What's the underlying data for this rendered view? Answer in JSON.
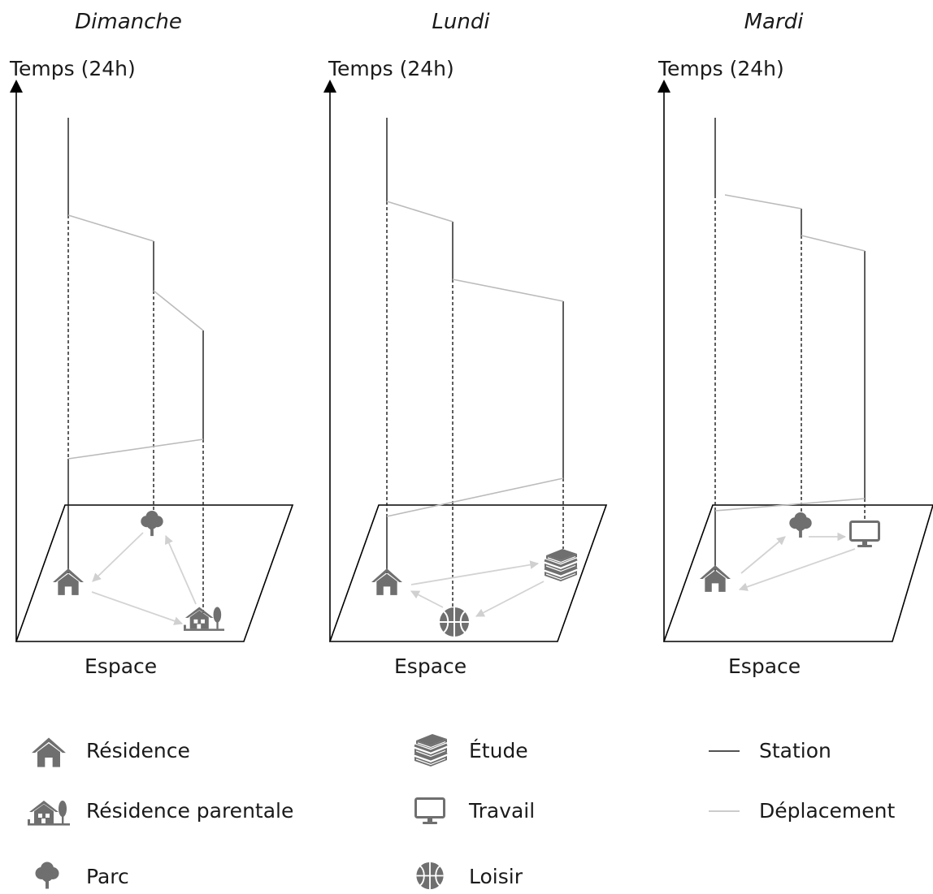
{
  "panels": [
    {
      "day": "Dimanche",
      "y_axis_label": "Temps (24h)",
      "x_axis_label": "Espace",
      "places": [
        "home",
        "park",
        "parent-home"
      ]
    },
    {
      "day": "Lundi",
      "y_axis_label": "Temps (24h)",
      "x_axis_label": "Espace",
      "places": [
        "home",
        "leisure",
        "study"
      ]
    },
    {
      "day": "Mardi",
      "y_axis_label": "Temps (24h)",
      "x_axis_label": "Espace",
      "places": [
        "home",
        "park",
        "work"
      ]
    }
  ],
  "legend": {
    "residence": "Résidence",
    "parental": "Résidence parentale",
    "parc": "Parc",
    "etude": "Étude",
    "travail": "Travail",
    "loisir": "Loisir",
    "station": "Station",
    "deplacement": "Déplacement"
  },
  "icons": {
    "home": "house-icon",
    "parent_home": "parental-house-icon",
    "park": "tree-icon",
    "study": "books-icon",
    "work": "monitor-icon",
    "leisure": "basketball-icon"
  },
  "colors": {
    "station": "#1a1a1a",
    "deplacement": "#bbbbbb",
    "icon": "#6f6f6f",
    "arrow": "#d3d3d3"
  }
}
